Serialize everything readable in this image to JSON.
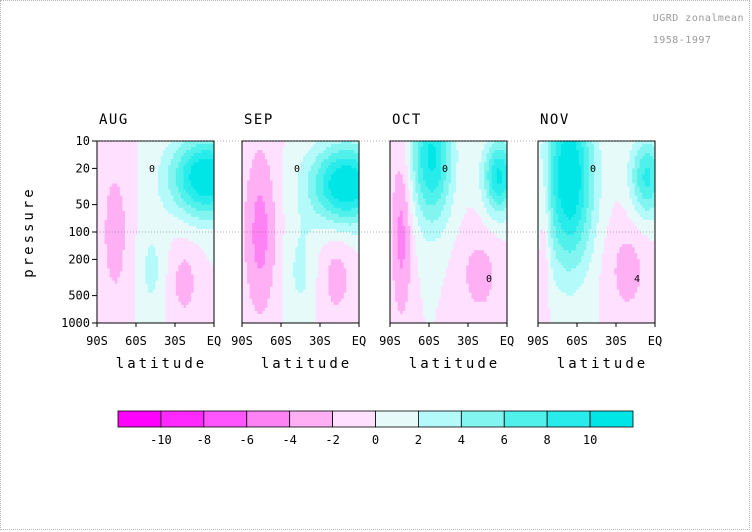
{
  "header": {
    "title": "UGRD zonalmean",
    "years": "1958-1997"
  },
  "chart_data": {
    "type": "contour",
    "variable": "UGRD zonal mean (m/s)",
    "period": "1958-1997",
    "ylabel": "pressure",
    "xlabel": "latitude",
    "yticks": [
      "10",
      "20",
      "50",
      "100",
      "200",
      "500",
      "1000"
    ],
    "xticks": [
      "90S",
      "60S",
      "30S",
      "EQ"
    ],
    "yrange_hPa": [
      1000,
      10
    ],
    "xrange_deg": [
      -90,
      0
    ],
    "panels": [
      {
        "month": "AUG",
        "negative_regions": [
          {
            "lat_range": [
              -90,
              -62
            ],
            "p_range": [
              10,
              1000
            ],
            "min": -2
          },
          {
            "lat_range": [
              -36,
              -10
            ],
            "p_range": [
              130,
              1000
            ],
            "min": -2
          }
        ],
        "positive_regions": [
          {
            "lat_range": [
              -62,
              -2
            ],
            "p_range": [
              10,
              70
            ],
            "max": 12,
            "center_lat": -6,
            "center_p": 25
          },
          {
            "lat_range": [
              -60,
              -36
            ],
            "p_range": [
              70,
              1000
            ],
            "max": 2
          }
        ],
        "contour_labels": [
          "0"
        ]
      },
      {
        "month": "SEP",
        "negative_regions": [
          {
            "lat_range": [
              -90,
              -62
            ],
            "p_range": [
              10,
              1000
            ],
            "min": -4
          },
          {
            "lat_range": [
              -32,
              -2
            ],
            "p_range": [
              100,
              1000
            ],
            "min": -2
          }
        ],
        "positive_regions": [
          {
            "lat_range": [
              -62,
              -2
            ],
            "p_range": [
              10,
              70
            ],
            "max": 12,
            "center_lat": -10,
            "center_p": 30
          },
          {
            "lat_range": [
              -58,
              -32
            ],
            "p_range": [
              70,
              1000
            ],
            "max": 2
          }
        ],
        "contour_labels": [
          "0"
        ]
      },
      {
        "month": "OCT",
        "negative_regions": [
          {
            "lat_range": [
              -90,
              -72
            ],
            "p_range": [
              10,
              1000
            ],
            "min": -4
          },
          {
            "lat_range": [
              -40,
              -2
            ],
            "p_range": [
              90,
              1000
            ],
            "min": -2
          }
        ],
        "positive_regions": [
          {
            "lat_range": [
              -72,
              -38
            ],
            "p_range": [
              10,
              300
            ],
            "max": 10,
            "center_lat": -58,
            "center_p": 15
          },
          {
            "lat_range": [
              -28,
              -2
            ],
            "p_range": [
              10,
              60
            ],
            "max": 10,
            "center_lat": -6,
            "center_p": 25
          }
        ],
        "contour_labels": [
          "0",
          "0"
        ]
      },
      {
        "month": "NOV",
        "negative_regions": [
          {
            "lat_range": [
              -90,
              -80
            ],
            "p_range": [
              10,
              1000
            ],
            "min": -2
          },
          {
            "lat_range": [
              -40,
              -2
            ],
            "p_range": [
              70,
              1000
            ],
            "min": -2
          }
        ],
        "positive_regions": [
          {
            "lat_range": [
              -82,
              -42
            ],
            "p_range": [
              10,
              1000
            ],
            "max": 12,
            "center_lat": -66,
            "center_p": 25
          },
          {
            "lat_range": [
              -30,
              -2
            ],
            "p_range": [
              10,
              70
            ],
            "max": 8,
            "center_lat": -6,
            "center_p": 25
          }
        ],
        "contour_labels": [
          "0",
          "4"
        ]
      }
    ],
    "colorbar": {
      "bounds": [
        -12,
        -10,
        -8,
        -6,
        -4,
        -2,
        0,
        2,
        4,
        6,
        8,
        10,
        12
      ],
      "labels": [
        "-10",
        "-8",
        "-6",
        "-4",
        "-2",
        "0",
        "2",
        "4",
        "6",
        "8",
        "10"
      ],
      "colors": [
        "#ff00ff",
        "#ff28ff",
        "#ff55ff",
        "#ff82f5",
        "#ffb0f5",
        "#ffe0ff",
        "#e6fafa",
        "#b4fafa",
        "#82f5f0",
        "#50f0eb",
        "#28ebeb",
        "#00e6e6"
      ]
    }
  }
}
